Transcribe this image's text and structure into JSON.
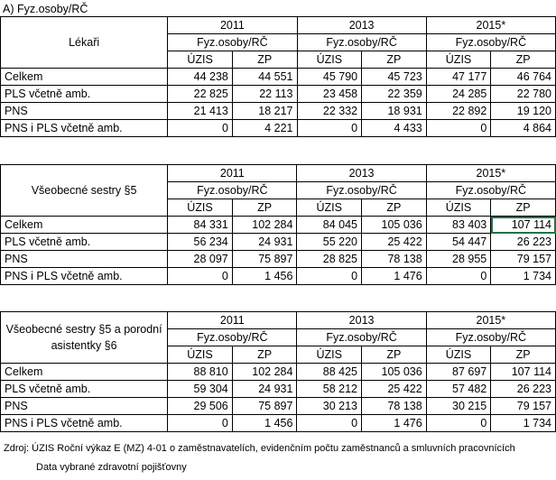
{
  "title": "A) Fyz.osoby/RČ",
  "years": [
    "2011",
    "2013",
    "2015*"
  ],
  "subheader": "Fyz.osoby/RČ",
  "cols": [
    "ÚZIS",
    "ZP"
  ],
  "blocks": [
    {
      "label": "Lékaři",
      "rows": [
        {
          "label": "Celkem",
          "values": [
            "44 238",
            "44 551",
            "45 790",
            "45 723",
            "47 177",
            "46 764"
          ]
        },
        {
          "label": "PLS včetně amb.",
          "values": [
            "22 825",
            "22 113",
            "23 458",
            "22 359",
            "24 285",
            "22 780"
          ]
        },
        {
          "label": "PNS",
          "values": [
            "21 413",
            "18 217",
            "22 332",
            "18 931",
            "22 892",
            "19 120"
          ]
        },
        {
          "label": "PNS i PLS včetně amb.",
          "values": [
            "0",
            "4 221",
            "0",
            "4 433",
            "0",
            "4 864"
          ]
        }
      ]
    },
    {
      "label": "Všeobecné sestry §5",
      "rows": [
        {
          "label": "Celkem",
          "values": [
            "84 331",
            "102 284",
            "84 045",
            "105 036",
            "83 403",
            "107 114"
          ]
        },
        {
          "label": "PLS včetně amb.",
          "values": [
            "56 234",
            "24 931",
            "55 220",
            "25 422",
            "54 447",
            "26 223"
          ]
        },
        {
          "label": "PNS",
          "values": [
            "28 097",
            "75 897",
            "28 825",
            "78 138",
            "28 955",
            "79 157"
          ]
        },
        {
          "label": "PNS i PLS včetně amb.",
          "values": [
            "0",
            "1 456",
            "0",
            "1 476",
            "0",
            "1 734"
          ]
        }
      ]
    },
    {
      "label": "Všeobecné sestry §5 a porodní asistentky §6",
      "rows": [
        {
          "label": "Celkem",
          "values": [
            "88 810",
            "102 284",
            "88 425",
            "105 036",
            "87 697",
            "107 114"
          ]
        },
        {
          "label": "PLS včetně amb.",
          "values": [
            "59 304",
            "24 931",
            "58 212",
            "25 422",
            "57 482",
            "26 223"
          ]
        },
        {
          "label": "PNS",
          "values": [
            "29 506",
            "75 897",
            "30 213",
            "78 138",
            "30 215",
            "79 157"
          ]
        },
        {
          "label": "PNS i PLS včetně amb.",
          "values": [
            "0",
            "1 456",
            "0",
            "1 476",
            "0",
            "1 734"
          ]
        }
      ]
    }
  ],
  "source": "Zdroj: ÚZIS Roční výkaz E (MZ) 4-01 o zaměstnavatelích, evidenčním počtu zaměstnanců a smluvních pracovnících",
  "source2": "Data vybrané zdravotní pojišťovny"
}
